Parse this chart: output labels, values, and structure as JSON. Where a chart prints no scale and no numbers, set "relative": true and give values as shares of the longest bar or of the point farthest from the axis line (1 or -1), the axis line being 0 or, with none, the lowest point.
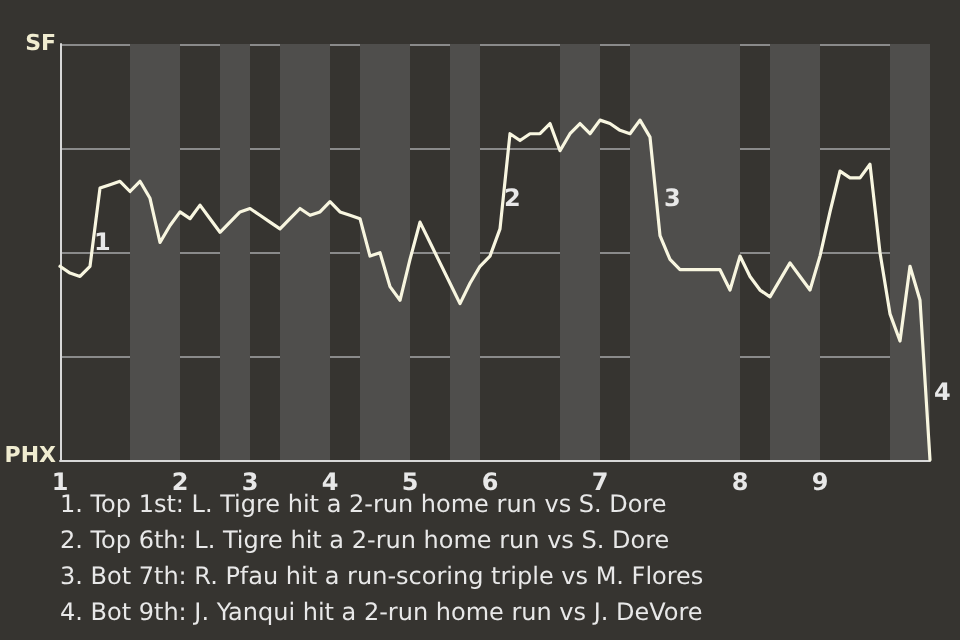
{
  "chart_data": {
    "type": "line",
    "color": "#f8f6e0",
    "relative": true,
    "categories": [
      "1",
      null,
      null,
      null,
      null,
      null,
      null,
      null,
      null,
      null,
      null,
      null,
      "2",
      null,
      null,
      null,
      null,
      null,
      null,
      "3",
      null,
      null,
      null,
      null,
      null,
      null,
      null,
      "4",
      null,
      null,
      null,
      null,
      null,
      null,
      null,
      "5",
      null,
      null,
      null,
      null,
      null,
      null,
      null,
      "6",
      null,
      null,
      null,
      null,
      null,
      null,
      null,
      null,
      null,
      null,
      "7",
      null,
      null,
      null,
      null,
      null,
      null,
      null,
      null,
      null,
      null,
      null,
      null,
      null,
      "8",
      null,
      null,
      null,
      null,
      null,
      null,
      null,
      "9",
      null,
      null,
      null,
      null,
      null,
      null,
      null,
      null,
      null,
      null,
      null
    ],
    "values": [
      0.57,
      0.55,
      0.54,
      0.57,
      0.8,
      0.81,
      0.82,
      0.79,
      0.82,
      0.77,
      0.64,
      0.69,
      0.73,
      0.71,
      0.75,
      0.71,
      0.67,
      0.7,
      0.73,
      0.74,
      0.72,
      0.7,
      0.68,
      0.71,
      0.74,
      0.72,
      0.73,
      0.76,
      0.73,
      0.72,
      0.71,
      0.6,
      0.61,
      0.51,
      0.47,
      0.59,
      0.7,
      0.64,
      0.58,
      0.52,
      0.46,
      0.52,
      0.57,
      0.6,
      0.68,
      0.96,
      0.94,
      0.96,
      0.96,
      0.99,
      0.91,
      0.96,
      0.99,
      0.96,
      1,
      0.99,
      0.97,
      0.96,
      1,
      0.95,
      0.66,
      0.59,
      0.56,
      0.56,
      0.56,
      0.56,
      0.56,
      0.5,
      0.6,
      0.54,
      0.5,
      0.48,
      0.53,
      0.58,
      0.54,
      0.5,
      0.6,
      0.73,
      0.85,
      0.83,
      0.83,
      0.87,
      0.61,
      0.43,
      0.35,
      0.57,
      0.47,
      0
    ],
    "grid": "y",
    "marker": "none",
    "line_style": "solid",
    "annotations": [
      "1",
      "2",
      "3",
      "4",
      "SF",
      "PHX",
      "1. Top 1st: L. Tigre hit a 2-run home run vs S. Dore",
      "2. Top 6th: L. Tigre hit a 2-run home run vs S. Dore",
      "3. Bot 7th: R. Pfau hit a run-scoring triple vs M. Flores",
      "4. Bot 9th: J. Yanqui hit a 2-run home run vs J. DeVore"
    ]
  }
}
